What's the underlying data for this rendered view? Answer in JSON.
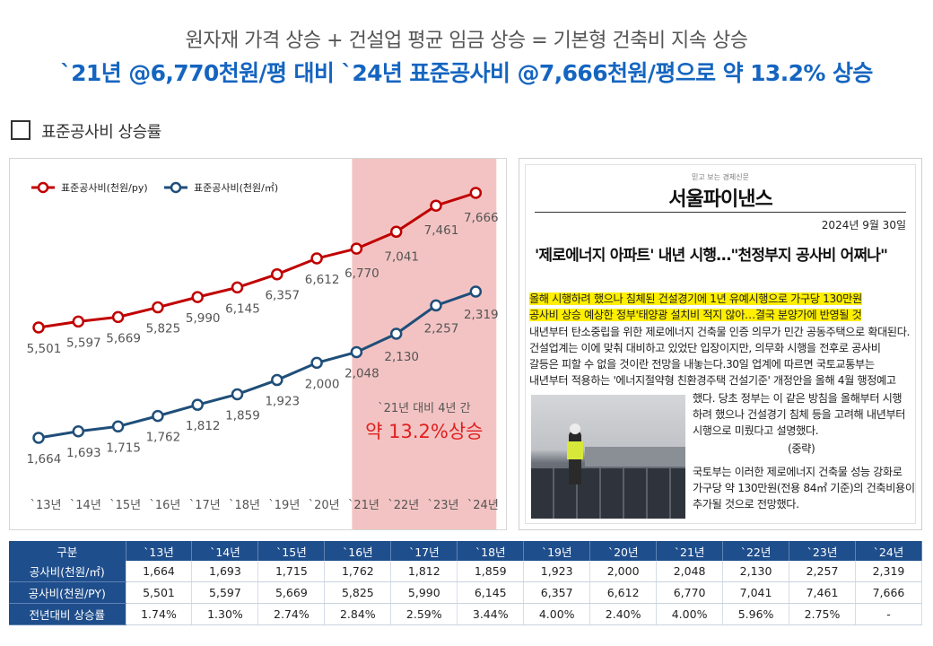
{
  "header": {
    "line1": "원자재 가격 상승 + 건설업 평균 임금 상승 = 기본형 건축비 지속 상승",
    "line2": "`21년 @6,770천원/평 대비 `24년 표준공사비 @7,666천원/평으로 약 13.2% 상승"
  },
  "section": {
    "title": "표준공사비 상승률"
  },
  "chart_data": {
    "type": "line",
    "categories": [
      "`13년",
      "`14년",
      "`15년",
      "`16년",
      "`17년",
      "`18년",
      "`19년",
      "`20년",
      "`21년",
      "`22년",
      "`23년",
      "`24년"
    ],
    "series": [
      {
        "name": "표준공사비(천원/py)",
        "values": [
          5501,
          5597,
          5669,
          5825,
          5990,
          6145,
          6357,
          6612,
          6770,
          7041,
          7461,
          7666
        ],
        "labels": [
          "5,501",
          "5,597",
          "5,669",
          "5,825",
          "5,990",
          "6,145",
          "6,357",
          "6,612",
          "6,770",
          "7,041",
          "7,461",
          "7,666"
        ],
        "color": "#c00000"
      },
      {
        "name": "표준공사비(천원/㎡)",
        "values": [
          1664,
          1693,
          1715,
          1762,
          1812,
          1859,
          1923,
          2000,
          2048,
          2130,
          2257,
          2319
        ],
        "labels": [
          "1,664",
          "1,693",
          "1,715",
          "1,762",
          "1,812",
          "1,859",
          "1,923",
          "2,000",
          "2,048",
          "2,130",
          "2,257",
          "2,319"
        ],
        "color": "#1f4e79"
      }
    ],
    "highlight": {
      "from": "`21년",
      "to": "`24년",
      "color": "#f3c3c3"
    },
    "annotation": {
      "line1": "`21년 대비 4년 간",
      "line2": "약 13.2%상승"
    },
    "legend_position": "top-left",
    "grid": false
  },
  "news": {
    "tagline": "믿고 보는 경제신문",
    "paper": "서울파이낸스",
    "date": "2024년 9월 30일",
    "headline": "'제로에너지 아파트' 내년 시행…\"천정부지 공사비 어쩌나\"",
    "hl_lines": [
      "올해 시행하려 했으나 침체된 건설경기에 1년 유예시행으로 가구당 130만원",
      "공사비 상승 예상한 정부'태양광 설치비 적지 않아…결국 분양가에 반영될 것"
    ],
    "body_lines": [
      "내년부터 탄소중립을 위한 제로에너지 건축물 인증 의무가 민간 공동주택으로 확대된다.",
      "건설업계는 이에 맞춰 대비하고 있었단 입장이지만, 의무화 시행을 전후로 공사비",
      "갈등은 피할 수 없을 것이란 전망을 내놓는다.30일 업계에 따르면 국토교통부는",
      "내년부터 적용하는 '에너지절약형 친환경주택 건설기준' 개정안을 올해 4월 행정예고"
    ],
    "side_lines": [
      "했다. 당초 정부는 이 같은 방침을 올해부터 시행",
      "하려 했으나 건설경기 침체 등을 고려해 내년부터",
      "시행으로 미뤘다고 설명했다."
    ],
    "ellipsis": "(중략)",
    "tail_lines": [
      "국토부는 이러한 제로에너지 건축물 성능 강화로",
      "가구당 약 130만원(전용 84㎡ 기준)의 건축비용이",
      "추가될 것으로 전망했다."
    ]
  },
  "table": {
    "header": [
      "구분",
      "`13년",
      "`14년",
      "`15년",
      "`16년",
      "`17년",
      "`18년",
      "`19년",
      "`20년",
      "`21년",
      "`22년",
      "`23년",
      "`24년"
    ],
    "rows": [
      [
        "공사비(천원/㎡)",
        "1,664",
        "1,693",
        "1,715",
        "1,762",
        "1,812",
        "1,859",
        "1,923",
        "2,000",
        "2,048",
        "2,130",
        "2,257",
        "2,319"
      ],
      [
        "공사비(천원/PY)",
        "5,501",
        "5,597",
        "5,669",
        "5,825",
        "5,990",
        "6,145",
        "6,357",
        "6,612",
        "6,770",
        "7,041",
        "7,461",
        "7,666"
      ],
      [
        "전년대비 상승률",
        "1.74%",
        "1.30%",
        "2.74%",
        "2.84%",
        "2.59%",
        "3.44%",
        "4.00%",
        "2.40%",
        "4.00%",
        "5.96%",
        "2.75%",
        "-"
      ]
    ]
  }
}
